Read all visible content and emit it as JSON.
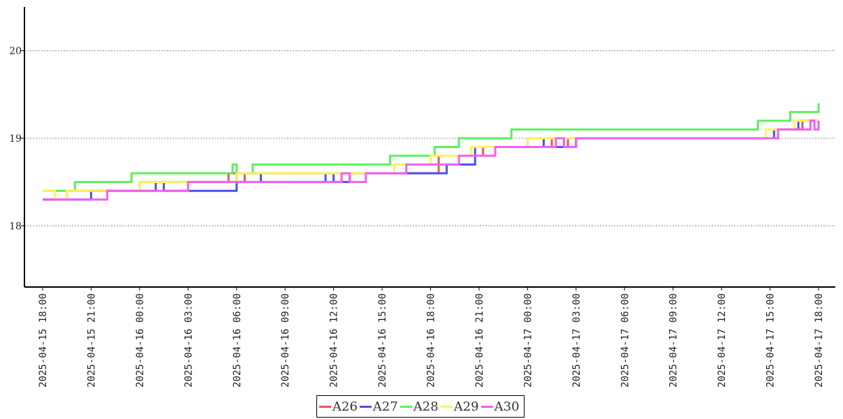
{
  "chart_data": {
    "type": "line",
    "title": "",
    "xlabel": "",
    "ylabel": "",
    "xlim": [
      "2025-04-15 18:00",
      "2025-04-17 18:00"
    ],
    "ylim": [
      17.3,
      20.5
    ],
    "yticks": [
      18,
      19,
      20
    ],
    "ytick_labels": [
      "18",
      "19",
      "20"
    ],
    "xtick_labels": [
      "2025-04-15 18:00",
      "2025-04-15 21:00",
      "2025-04-16 00:00",
      "2025-04-16 03:00",
      "2025-04-16 06:00",
      "2025-04-16 09:00",
      "2025-04-16 12:00",
      "2025-04-16 15:00",
      "2025-04-16 18:00",
      "2025-04-16 21:00",
      "2025-04-17 00:00",
      "2025-04-17 03:00",
      "2025-04-17 06:00",
      "2025-04-17 09:00",
      "2025-04-17 12:00",
      "2025-04-17 15:00",
      "2025-04-17 18:00"
    ],
    "grid": "horizontal-dotted",
    "legend_position": "bottom-center",
    "series": [
      {
        "name": "A26",
        "color": "#f05454",
        "points": [
          [
            "2025-04-15 18:00",
            18.3
          ],
          [
            "2025-04-15 19:30",
            18.4
          ],
          [
            "2025-04-16 00:00",
            18.5
          ],
          [
            "2025-04-16 05:30",
            18.6
          ],
          [
            "2025-04-16 06:00",
            18.5
          ],
          [
            "2025-04-16 06:30",
            18.6
          ],
          [
            "2025-04-16 18:30",
            18.8
          ],
          [
            "2025-04-16 21:15",
            18.9
          ],
          [
            "2025-04-17 01:30",
            19.0
          ],
          [
            "2025-04-17 02:30",
            18.9
          ],
          [
            "2025-04-17 03:00",
            19.0
          ],
          [
            "2025-04-17 15:30",
            19.1
          ],
          [
            "2025-04-17 17:00",
            19.2
          ],
          [
            "2025-04-17 18:00",
            19.2
          ]
        ]
      },
      {
        "name": "A27",
        "color": "#5050e8",
        "points": [
          [
            "2025-04-15 18:00",
            18.3
          ],
          [
            "2025-04-15 21:00",
            18.4
          ],
          [
            "2025-04-16 01:00",
            18.5
          ],
          [
            "2025-04-16 01:30",
            18.4
          ],
          [
            "2025-04-16 06:00",
            18.6
          ],
          [
            "2025-04-16 07:30",
            18.5
          ],
          [
            "2025-04-16 11:30",
            18.6
          ],
          [
            "2025-04-16 12:00",
            18.5
          ],
          [
            "2025-04-16 13:00",
            18.6
          ],
          [
            "2025-04-16 19:00",
            18.7
          ],
          [
            "2025-04-16 20:45",
            18.9
          ],
          [
            "2025-04-17 00:00",
            19.0
          ],
          [
            "2025-04-17 01:00",
            18.9
          ],
          [
            "2025-04-17 03:00",
            19.0
          ],
          [
            "2025-04-17 15:15",
            19.1
          ],
          [
            "2025-04-17 16:45",
            19.2
          ],
          [
            "2025-04-17 18:00",
            19.2
          ]
        ]
      },
      {
        "name": "A28",
        "color": "#5cf05c",
        "points": [
          [
            "2025-04-15 18:00",
            18.4
          ],
          [
            "2025-04-15 20:00",
            18.5
          ],
          [
            "2025-04-15 23:30",
            18.6
          ],
          [
            "2025-04-16 05:45",
            18.7
          ],
          [
            "2025-04-16 06:00",
            18.6
          ],
          [
            "2025-04-16 07:00",
            18.7
          ],
          [
            "2025-04-16 15:30",
            18.8
          ],
          [
            "2025-04-16 18:15",
            18.9
          ],
          [
            "2025-04-16 19:45",
            19.0
          ],
          [
            "2025-04-16 23:00",
            19.1
          ],
          [
            "2025-04-17 14:15",
            19.2
          ],
          [
            "2025-04-17 16:15",
            19.3
          ],
          [
            "2025-04-17 18:00",
            19.4
          ]
        ]
      },
      {
        "name": "A29",
        "color": "#fff25a",
        "points": [
          [
            "2025-04-15 18:00",
            18.4
          ],
          [
            "2025-04-15 18:45",
            18.3
          ],
          [
            "2025-04-15 19:30",
            18.4
          ],
          [
            "2025-04-16 00:00",
            18.5
          ],
          [
            "2025-04-16 06:00",
            18.6
          ],
          [
            "2025-04-16 15:45",
            18.7
          ],
          [
            "2025-04-16 18:00",
            18.8
          ],
          [
            "2025-04-16 20:30",
            18.9
          ],
          [
            "2025-04-17 00:00",
            19.0
          ],
          [
            "2025-04-17 14:45",
            19.1
          ],
          [
            "2025-04-17 16:30",
            19.2
          ],
          [
            "2025-04-17 18:00",
            19.2
          ]
        ]
      },
      {
        "name": "A30",
        "color": "#f060f0",
        "points": [
          [
            "2025-04-15 18:00",
            18.3
          ],
          [
            "2025-04-15 22:00",
            18.4
          ],
          [
            "2025-04-16 03:00",
            18.5
          ],
          [
            "2025-04-16 12:30",
            18.6
          ],
          [
            "2025-04-16 13:00",
            18.5
          ],
          [
            "2025-04-16 14:00",
            18.6
          ],
          [
            "2025-04-16 16:30",
            18.7
          ],
          [
            "2025-04-16 19:45",
            18.8
          ],
          [
            "2025-04-16 22:00",
            18.9
          ],
          [
            "2025-04-17 01:45",
            19.0
          ],
          [
            "2025-04-17 02:15",
            18.9
          ],
          [
            "2025-04-17 03:00",
            19.0
          ],
          [
            "2025-04-17 15:30",
            19.1
          ],
          [
            "2025-04-17 17:30",
            19.2
          ],
          [
            "2025-04-17 17:45",
            19.1
          ],
          [
            "2025-04-17 18:00",
            19.2
          ]
        ]
      }
    ]
  }
}
